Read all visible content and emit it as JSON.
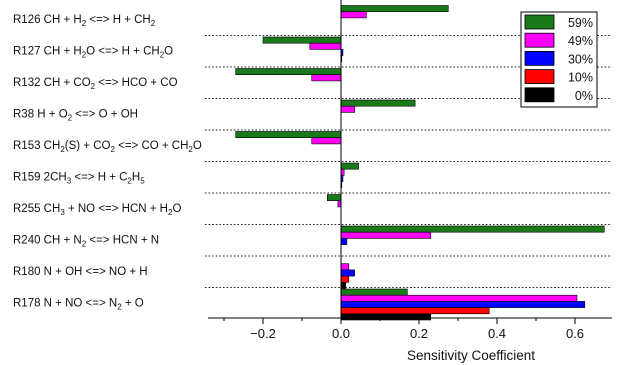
{
  "chart_data": {
    "type": "bar",
    "orientation": "horizontal",
    "xlabel": "Sensitivity Coefficient",
    "ylabel": "",
    "title": "",
    "xlim": [
      -0.35,
      0.7
    ],
    "xticks": [
      -0.2,
      0.0,
      0.2,
      0.4,
      0.6
    ],
    "xtick_labels": [
      "−0.2",
      "0.0",
      "0.2",
      "0.4",
      "0.6"
    ],
    "grid": "dotted separators between reactions",
    "legend_position": "top-right",
    "categories": [
      "R126 CH + H2 <=> H + CH2",
      "R127 CH + H2O <=> H + CH2O",
      "R132 CH + CO2 <=> HCO + CO",
      "R38 H + O2 <=> O + OH",
      "R153 CH2(S) + CO2 <=> CO + CH2O",
      "R159 2CH3 <=> H + C2H5",
      "R255 CH3 + NO <=> HCN + H2O",
      "R240 CH + N2 <=> HCN + N",
      "R180 N + OH <=> NO + H",
      "R178 N + NO <=> N2 + O"
    ],
    "category_labels": [
      [
        {
          "t": "R126 CH + H"
        },
        {
          "t": "2",
          "sub": true
        },
        {
          "t": " <=> H + CH"
        },
        {
          "t": "2",
          "sub": true
        }
      ],
      [
        {
          "t": "R127 CH + H"
        },
        {
          "t": "2",
          "sub": true
        },
        {
          "t": "O <=> H + CH"
        },
        {
          "t": "2",
          "sub": true
        },
        {
          "t": "O"
        }
      ],
      [
        {
          "t": "R132 CH + CO"
        },
        {
          "t": "2",
          "sub": true
        },
        {
          "t": " <=> HCO + CO"
        }
      ],
      [
        {
          "t": "R38 H + O"
        },
        {
          "t": "2",
          "sub": true
        },
        {
          "t": " <=> O + OH"
        }
      ],
      [
        {
          "t": "R153 CH"
        },
        {
          "t": "2",
          "sub": true
        },
        {
          "t": "(S) + CO"
        },
        {
          "t": "2",
          "sub": true
        },
        {
          "t": " <=> CO + CH"
        },
        {
          "t": "2",
          "sub": true
        },
        {
          "t": "O"
        }
      ],
      [
        {
          "t": "R159 2CH"
        },
        {
          "t": "3",
          "sub": true
        },
        {
          "t": " <=> H + C"
        },
        {
          "t": "2",
          "sub": true
        },
        {
          "t": "H"
        },
        {
          "t": "5",
          "sub": true
        }
      ],
      [
        {
          "t": "R255 CH"
        },
        {
          "t": "3",
          "sub": true
        },
        {
          "t": " + NO <=> HCN + H"
        },
        {
          "t": "2",
          "sub": true
        },
        {
          "t": "O"
        }
      ],
      [
        {
          "t": "R240 CH + N"
        },
        {
          "t": "2",
          "sub": true
        },
        {
          "t": " <=> HCN + N"
        }
      ],
      [
        {
          "t": "R180 N + OH <=> NO + H"
        }
      ],
      [
        {
          "t": "R178 N + NO <=> N"
        },
        {
          "t": "2",
          "sub": true
        },
        {
          "t": " + O"
        }
      ]
    ],
    "series": [
      {
        "name": "59%",
        "color": "#1a7a1a",
        "values": [
          0.275,
          -0.2,
          -0.27,
          0.19,
          -0.27,
          0.045,
          -0.035,
          0.675,
          0.0,
          0.17
        ]
      },
      {
        "name": "49%",
        "color": "#ff00ff",
        "values": [
          0.065,
          -0.08,
          -0.075,
          0.035,
          -0.075,
          0.008,
          -0.008,
          0.23,
          0.02,
          0.605
        ]
      },
      {
        "name": "30%",
        "color": "#0000ff",
        "values": [
          0.0,
          0.005,
          0.0,
          0.0,
          0.0,
          0.005,
          0.0,
          0.015,
          0.035,
          0.625
        ]
      },
      {
        "name": "10%",
        "color": "#ff0000",
        "values": [
          0.0,
          0.002,
          0.0,
          0.0,
          0.0,
          0.002,
          0.0,
          0.0,
          0.02,
          0.38
        ]
      },
      {
        "name": "0%",
        "color": "#000000",
        "values": [
          0.0,
          0.0,
          0.0,
          0.0,
          0.0,
          0.0,
          0.0,
          0.0,
          0.012,
          0.23
        ]
      }
    ]
  }
}
